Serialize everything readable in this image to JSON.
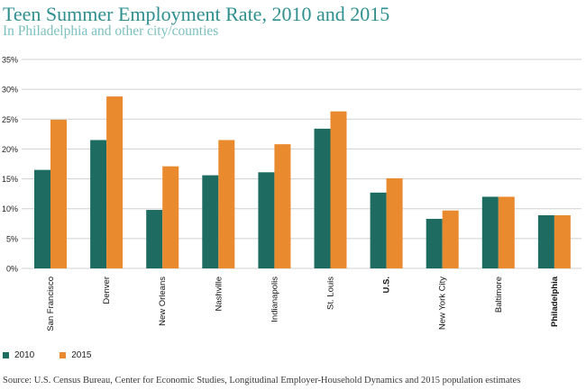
{
  "title": "Teen Summer Employment Rate, 2010 and 2015",
  "subtitle": "In Philadelphia and other city/counties",
  "source": "Source: U.S. Census Bureau, Center for Economic Studies, Longitudinal Employer-Household Dynamics  and 2015 population estimates",
  "colors": {
    "title": "#2f8f8f",
    "subtitle": "#7cc0c0",
    "series_2010": "#1e6b62",
    "series_2015": "#e98a2e",
    "grid": "#d0d0d0"
  },
  "chart_data": {
    "type": "bar",
    "title": "Teen Summer Employment Rate, 2010 and 2015",
    "subtitle": "In Philadelphia and other city/counties",
    "categories": [
      "San Francisco",
      "Denver",
      "New Orleans",
      "Nashville",
      "Indianapolis",
      "St. Louis",
      "U.S.",
      "New York City",
      "Baltimore",
      "Philadelphia"
    ],
    "bold_categories": [
      "U.S.",
      "Philadelphia"
    ],
    "series": [
      {
        "name": "2010",
        "color": "#1e6b62",
        "values": [
          16.5,
          21.5,
          9.8,
          15.6,
          16.1,
          23.4,
          12.7,
          8.3,
          12.0,
          8.9
        ]
      },
      {
        "name": "2015",
        "color": "#e98a2e",
        "values": [
          24.9,
          28.8,
          17.1,
          21.5,
          20.8,
          26.3,
          15.1,
          9.7,
          12.0,
          8.9
        ]
      }
    ],
    "ylim": [
      0,
      35
    ],
    "yticks": [
      0,
      5,
      10,
      15,
      20,
      25,
      30,
      35
    ],
    "ytick_labels": [
      "0%",
      "5%",
      "10%",
      "15%",
      "20%",
      "25%",
      "30%",
      "35%"
    ],
    "xlabel": "",
    "ylabel": "",
    "grid": true,
    "legend_position": "bottom-left"
  }
}
